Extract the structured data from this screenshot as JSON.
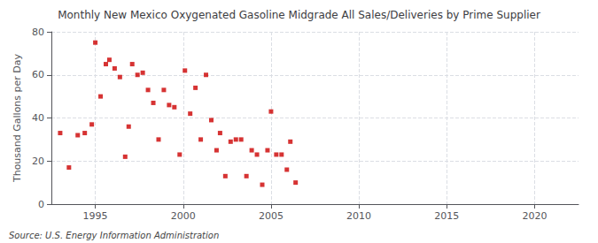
{
  "chart_data": {
    "type": "scatter",
    "title": "Monthly New Mexico Oxygenated Gasoline Midgrade All Sales/Deliveries by Prime Supplier",
    "ylabel": "Thousand Gallons per Day",
    "annotations": [
      "Source: U.S. Energy Information Administration"
    ],
    "x": [
      1993.0,
      1993.5,
      1994.0,
      1994.4,
      1994.8,
      1995.0,
      1995.3,
      1995.6,
      1995.8,
      1996.1,
      1996.4,
      1996.7,
      1996.9,
      1997.1,
      1997.4,
      1997.7,
      1998.0,
      1998.3,
      1998.6,
      1998.9,
      1999.2,
      1999.5,
      1999.8,
      2000.1,
      2000.4,
      2000.7,
      2001.0,
      2001.3,
      2001.6,
      2001.9,
      2002.1,
      2002.4,
      2002.7,
      2003.0,
      2003.3,
      2003.6,
      2003.9,
      2004.2,
      2004.5,
      2004.8,
      2005.0,
      2005.3,
      2005.6,
      2005.9,
      2006.1,
      2006.4
    ],
    "values": [
      33,
      17,
      32,
      33,
      37,
      75,
      50,
      65,
      67,
      63,
      59,
      22,
      36,
      65,
      60,
      61,
      53,
      47,
      30,
      53,
      46,
      45,
      23,
      62,
      42,
      54,
      30,
      60,
      39,
      25,
      33,
      13,
      29,
      30,
      30,
      13,
      25,
      23,
      9,
      25,
      43,
      23,
      23,
      16,
      29,
      10
    ],
    "color": "#cc0000",
    "marker": "square",
    "xlim": [
      1992.5,
      2022.5
    ],
    "ylim": [
      0,
      80
    ],
    "xticks": [
      1995,
      2000,
      2005,
      2010,
      2015,
      2020
    ],
    "yticks": [
      0,
      20,
      40,
      60,
      80
    ],
    "grid": true
  }
}
